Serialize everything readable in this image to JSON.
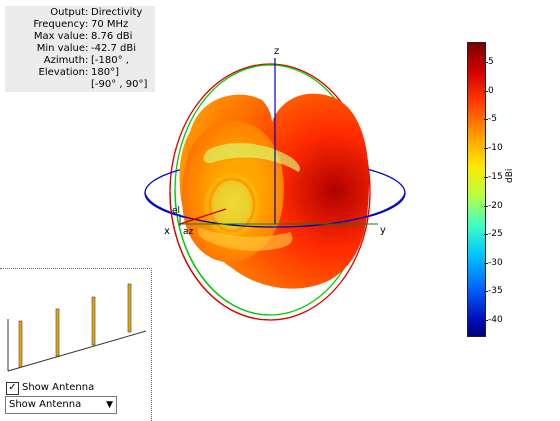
{
  "info": {
    "rows": [
      {
        "key": "Output",
        "value": "Directivity"
      },
      {
        "key": "Frequency",
        "value": "70 MHz"
      },
      {
        "key": "Max value",
        "value": "8.76 dBi"
      },
      {
        "key": "Min value",
        "value": "-42.7 dBi"
      },
      {
        "key": "Azimuth",
        "value": "[-180° ,"
      },
      {
        "key": "Elevation",
        "value": "180°]"
      }
    ],
    "extra_line": "[-90° , 90°]",
    "separator": ":"
  },
  "axes": {
    "x": "x",
    "y": "y",
    "z": "z",
    "el": "el",
    "az": "az"
  },
  "colorbar": {
    "unit": "dBi",
    "ticks": [
      "5",
      "0",
      "-5",
      "-10",
      "-15",
      "-20",
      "-25",
      "-30",
      "-35",
      "-40"
    ]
  },
  "controls": {
    "show_antenna_label": "Show Antenna",
    "show_antenna_checked": true,
    "dropdown_value": "Show Antenna"
  }
}
